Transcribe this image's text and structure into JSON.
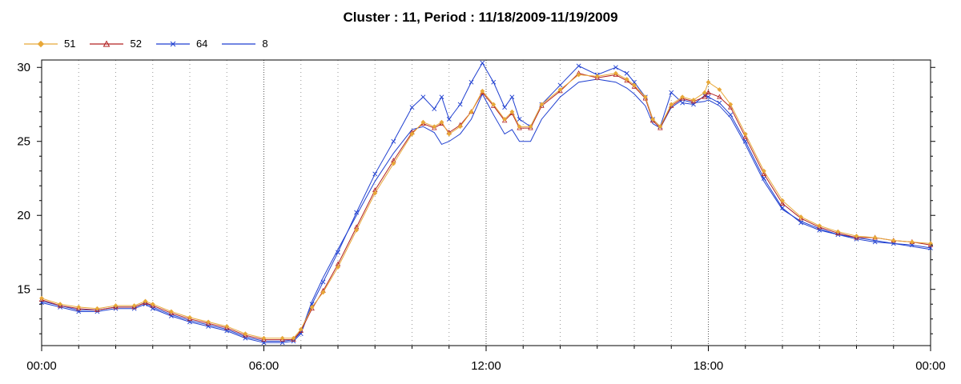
{
  "chart_data": {
    "type": "line",
    "title": "Cluster : 11, Period : 11/18/2009-11/19/2009",
    "xlabel": "",
    "ylabel": "",
    "x_ticks": [
      "00:00",
      "06:00",
      "12:00",
      "18:00",
      "00:00"
    ],
    "y_ticks": [
      "15",
      "20",
      "25",
      "30"
    ],
    "xlim_hours": [
      0,
      24
    ],
    "ylim": [
      11.2,
      30.5
    ],
    "grid": "vertical dotted",
    "legend_position": "top-left",
    "series": [
      {
        "name": "51",
        "color": "#E8A838",
        "marker": "diamond",
        "points": [
          [
            0,
            14.4
          ],
          [
            0.5,
            14.0
          ],
          [
            1.0,
            13.8
          ],
          [
            1.5,
            13.7
          ],
          [
            2.0,
            13.9
          ],
          [
            2.5,
            13.9
          ],
          [
            2.8,
            14.2
          ],
          [
            3.0,
            14.0
          ],
          [
            3.5,
            13.5
          ],
          [
            4.0,
            13.1
          ],
          [
            4.5,
            12.8
          ],
          [
            5.0,
            12.5
          ],
          [
            5.5,
            12.0
          ],
          [
            6.0,
            11.7
          ],
          [
            6.5,
            11.7
          ],
          [
            6.8,
            11.7
          ],
          [
            7.0,
            12.3
          ],
          [
            7.3,
            13.8
          ],
          [
            7.6,
            14.8
          ],
          [
            8.0,
            16.5
          ],
          [
            8.5,
            19.0
          ],
          [
            9.0,
            21.5
          ],
          [
            9.5,
            23.5
          ],
          [
            10.0,
            25.5
          ],
          [
            10.3,
            26.3
          ],
          [
            10.6,
            26.0
          ],
          [
            10.8,
            26.3
          ],
          [
            11.0,
            25.5
          ],
          [
            11.3,
            26.0
          ],
          [
            11.6,
            27.0
          ],
          [
            11.9,
            28.4
          ],
          [
            12.2,
            27.5
          ],
          [
            12.5,
            26.5
          ],
          [
            12.7,
            27.0
          ],
          [
            12.9,
            26.0
          ],
          [
            13.2,
            26.0
          ],
          [
            13.5,
            27.5
          ],
          [
            14.0,
            28.5
          ],
          [
            14.5,
            29.5
          ],
          [
            15.0,
            29.4
          ],
          [
            15.5,
            29.6
          ],
          [
            15.8,
            29.2
          ],
          [
            16.0,
            28.8
          ],
          [
            16.3,
            28.0
          ],
          [
            16.5,
            26.5
          ],
          [
            16.7,
            26.0
          ],
          [
            17.0,
            27.5
          ],
          [
            17.3,
            28.0
          ],
          [
            17.6,
            27.8
          ],
          [
            17.9,
            28.3
          ],
          [
            18.0,
            29.0
          ],
          [
            18.3,
            28.5
          ],
          [
            18.6,
            27.5
          ],
          [
            19.0,
            25.5
          ],
          [
            19.5,
            23.0
          ],
          [
            20.0,
            21.0
          ],
          [
            20.5,
            19.9
          ],
          [
            21.0,
            19.3
          ],
          [
            21.5,
            18.9
          ],
          [
            22.0,
            18.6
          ],
          [
            22.5,
            18.5
          ],
          [
            23.0,
            18.3
          ],
          [
            23.5,
            18.2
          ],
          [
            24.0,
            18.1
          ]
        ]
      },
      {
        "name": "52",
        "color": "#B22222",
        "marker": "triangle",
        "points": [
          [
            0,
            14.3
          ],
          [
            0.5,
            13.9
          ],
          [
            1.0,
            13.7
          ],
          [
            1.5,
            13.6
          ],
          [
            2.0,
            13.8
          ],
          [
            2.5,
            13.8
          ],
          [
            2.8,
            14.1
          ],
          [
            3.0,
            13.9
          ],
          [
            3.5,
            13.4
          ],
          [
            4.0,
            13.0
          ],
          [
            4.5,
            12.7
          ],
          [
            5.0,
            12.4
          ],
          [
            5.5,
            11.9
          ],
          [
            6.0,
            11.6
          ],
          [
            6.5,
            11.6
          ],
          [
            6.8,
            11.6
          ],
          [
            7.0,
            12.2
          ],
          [
            7.3,
            13.7
          ],
          [
            7.6,
            14.9
          ],
          [
            8.0,
            16.7
          ],
          [
            8.5,
            19.2
          ],
          [
            9.0,
            21.7
          ],
          [
            9.5,
            23.7
          ],
          [
            10.0,
            25.6
          ],
          [
            10.3,
            26.2
          ],
          [
            10.6,
            25.9
          ],
          [
            10.8,
            26.2
          ],
          [
            11.0,
            25.6
          ],
          [
            11.3,
            26.1
          ],
          [
            11.6,
            27.0
          ],
          [
            11.9,
            28.3
          ],
          [
            12.2,
            27.4
          ],
          [
            12.5,
            26.4
          ],
          [
            12.7,
            26.9
          ],
          [
            12.9,
            25.9
          ],
          [
            13.2,
            25.9
          ],
          [
            13.5,
            27.4
          ],
          [
            14.0,
            28.4
          ],
          [
            14.5,
            29.6
          ],
          [
            15.0,
            29.3
          ],
          [
            15.5,
            29.5
          ],
          [
            15.8,
            29.1
          ],
          [
            16.0,
            28.7
          ],
          [
            16.3,
            27.9
          ],
          [
            16.5,
            26.4
          ],
          [
            16.7,
            25.9
          ],
          [
            17.0,
            27.4
          ],
          [
            17.3,
            27.9
          ],
          [
            17.6,
            27.7
          ],
          [
            17.9,
            28.0
          ],
          [
            18.0,
            28.3
          ],
          [
            18.3,
            28.0
          ],
          [
            18.6,
            27.3
          ],
          [
            19.0,
            25.3
          ],
          [
            19.5,
            22.8
          ],
          [
            20.0,
            20.8
          ],
          [
            20.5,
            19.8
          ],
          [
            21.0,
            19.2
          ],
          [
            21.5,
            18.8
          ],
          [
            22.0,
            18.5
          ],
          [
            22.5,
            18.5
          ],
          [
            23.0,
            18.3
          ],
          [
            23.5,
            18.2
          ],
          [
            24.0,
            18.0
          ]
        ]
      },
      {
        "name": "64",
        "color": "#1F3FD0",
        "marker": "x",
        "points": [
          [
            0,
            14.1
          ],
          [
            0.5,
            13.8
          ],
          [
            1.0,
            13.5
          ],
          [
            1.5,
            13.5
          ],
          [
            2.0,
            13.7
          ],
          [
            2.5,
            13.7
          ],
          [
            2.8,
            14.0
          ],
          [
            3.0,
            13.7
          ],
          [
            3.5,
            13.2
          ],
          [
            4.0,
            12.8
          ],
          [
            4.5,
            12.5
          ],
          [
            5.0,
            12.2
          ],
          [
            5.5,
            11.7
          ],
          [
            6.0,
            11.4
          ],
          [
            6.5,
            11.4
          ],
          [
            6.8,
            11.5
          ],
          [
            7.0,
            12.0
          ],
          [
            7.3,
            14.0
          ],
          [
            7.6,
            15.5
          ],
          [
            8.0,
            17.5
          ],
          [
            8.5,
            20.2
          ],
          [
            9.0,
            22.8
          ],
          [
            9.5,
            25.0
          ],
          [
            10.0,
            27.3
          ],
          [
            10.3,
            28.0
          ],
          [
            10.6,
            27.2
          ],
          [
            10.8,
            28.0
          ],
          [
            11.0,
            26.5
          ],
          [
            11.3,
            27.5
          ],
          [
            11.6,
            29.0
          ],
          [
            11.9,
            30.3
          ],
          [
            12.2,
            29.0
          ],
          [
            12.5,
            27.3
          ],
          [
            12.7,
            28.0
          ],
          [
            12.9,
            26.5
          ],
          [
            13.2,
            26.0
          ],
          [
            13.5,
            27.5
          ],
          [
            14.0,
            28.8
          ],
          [
            14.5,
            30.1
          ],
          [
            15.0,
            29.5
          ],
          [
            15.5,
            30.0
          ],
          [
            15.8,
            29.6
          ],
          [
            16.0,
            29.0
          ],
          [
            16.3,
            28.0
          ],
          [
            16.5,
            26.5
          ],
          [
            16.7,
            26.0
          ],
          [
            17.0,
            28.3
          ],
          [
            17.3,
            27.6
          ],
          [
            17.6,
            27.5
          ],
          [
            17.9,
            28.1
          ],
          [
            18.0,
            28.0
          ],
          [
            18.3,
            27.6
          ],
          [
            18.6,
            26.8
          ],
          [
            19.0,
            25.0
          ],
          [
            19.5,
            22.5
          ],
          [
            20.0,
            20.5
          ],
          [
            20.5,
            19.5
          ],
          [
            21.0,
            19.0
          ],
          [
            21.5,
            18.7
          ],
          [
            22.0,
            18.4
          ],
          [
            22.5,
            18.2
          ],
          [
            23.0,
            18.1
          ],
          [
            23.5,
            18.0
          ],
          [
            24.0,
            17.8
          ]
        ]
      },
      {
        "name": "8",
        "color": "#1F3FD0",
        "marker": "none",
        "points": [
          [
            0,
            14.2
          ],
          [
            0.5,
            13.9
          ],
          [
            1.0,
            13.6
          ],
          [
            1.5,
            13.6
          ],
          [
            2.0,
            13.8
          ],
          [
            2.5,
            13.8
          ],
          [
            2.8,
            14.1
          ],
          [
            3.0,
            13.8
          ],
          [
            3.5,
            13.3
          ],
          [
            4.0,
            12.9
          ],
          [
            4.5,
            12.6
          ],
          [
            5.0,
            12.3
          ],
          [
            5.5,
            11.8
          ],
          [
            6.0,
            11.5
          ],
          [
            6.5,
            11.5
          ],
          [
            6.8,
            11.6
          ],
          [
            7.0,
            12.1
          ],
          [
            7.3,
            14.2
          ],
          [
            7.6,
            15.8
          ],
          [
            8.0,
            17.7
          ],
          [
            8.5,
            20.0
          ],
          [
            9.0,
            22.3
          ],
          [
            9.5,
            24.2
          ],
          [
            10.0,
            25.8
          ],
          [
            10.3,
            26.0
          ],
          [
            10.6,
            25.6
          ],
          [
            10.8,
            24.8
          ],
          [
            11.0,
            25.0
          ],
          [
            11.3,
            25.5
          ],
          [
            11.6,
            26.5
          ],
          [
            11.9,
            28.2
          ],
          [
            12.2,
            26.8
          ],
          [
            12.5,
            25.5
          ],
          [
            12.7,
            25.8
          ],
          [
            12.9,
            25.0
          ],
          [
            13.2,
            25.0
          ],
          [
            13.5,
            26.5
          ],
          [
            14.0,
            28.0
          ],
          [
            14.5,
            29.0
          ],
          [
            15.0,
            29.2
          ],
          [
            15.5,
            29.0
          ],
          [
            15.8,
            28.6
          ],
          [
            16.0,
            28.2
          ],
          [
            16.3,
            27.4
          ],
          [
            16.5,
            26.2
          ],
          [
            16.7,
            25.9
          ],
          [
            17.0,
            27.3
          ],
          [
            17.3,
            27.8
          ],
          [
            17.6,
            27.6
          ],
          [
            17.9,
            27.7
          ],
          [
            18.0,
            27.8
          ],
          [
            18.3,
            27.4
          ],
          [
            18.6,
            26.6
          ],
          [
            19.0,
            24.8
          ],
          [
            19.5,
            22.3
          ],
          [
            20.0,
            20.4
          ],
          [
            20.5,
            19.6
          ],
          [
            21.0,
            19.1
          ],
          [
            21.5,
            18.7
          ],
          [
            22.0,
            18.5
          ],
          [
            22.5,
            18.3
          ],
          [
            23.0,
            18.1
          ],
          [
            23.5,
            17.9
          ],
          [
            24.0,
            17.7
          ]
        ]
      }
    ]
  }
}
